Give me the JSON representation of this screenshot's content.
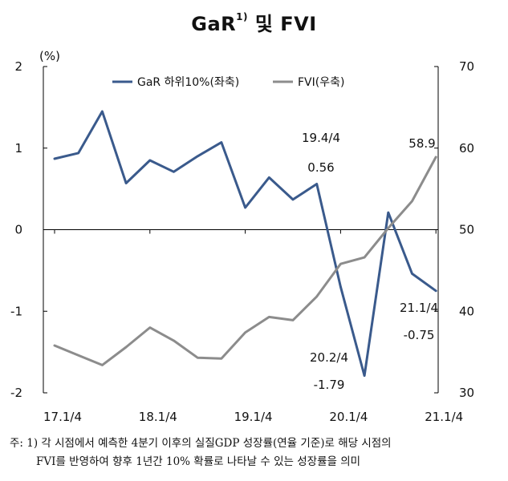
{
  "title": {
    "main": "GaR",
    "sup": "1)",
    "suffix": " 및 FVI"
  },
  "chart_data": {
    "type": "line",
    "left_axis": {
      "unit": "(%)",
      "ylim": [
        -2,
        2
      ],
      "ticks": [
        "2",
        "1",
        "0",
        "-1",
        "-2"
      ]
    },
    "right_axis": {
      "ylim": [
        30,
        70
      ],
      "ticks": [
        "70",
        "60",
        "50",
        "40",
        "30"
      ]
    },
    "x_tick_labels": [
      "17.1/4",
      "18.1/4",
      "19.1/4",
      "20.1/4",
      "21.1/4"
    ],
    "x": [
      "17.1/4",
      "17.2/4",
      "17.3/4",
      "17.4/4",
      "18.1/4",
      "18.2/4",
      "18.3/4",
      "18.4/4",
      "19.1/4",
      "19.2/4",
      "19.3/4",
      "19.4/4",
      "20.1/4",
      "20.2/4",
      "20.3/4",
      "20.4/4",
      "21.1/4"
    ],
    "series": [
      {
        "name": "GaR 하위10%(좌축)",
        "axis": "left",
        "color": "#3a5a8c",
        "values": [
          0.87,
          0.94,
          1.45,
          0.57,
          0.85,
          0.71,
          0.9,
          1.07,
          0.27,
          0.64,
          0.37,
          0.56,
          -0.7,
          -1.79,
          0.21,
          -0.54,
          -0.75
        ]
      },
      {
        "name": "FVI(우축)",
        "axis": "right",
        "color": "#8c8c8c",
        "values": [
          35.8,
          34.6,
          33.4,
          35.6,
          38.0,
          36.4,
          34.3,
          34.2,
          37.4,
          39.3,
          38.9,
          41.8,
          45.8,
          46.6,
          50.2,
          53.5,
          58.9
        ]
      }
    ],
    "annotations": [
      {
        "label": "19.4/4",
        "value": "0.56"
      },
      {
        "label": "20.2/4",
        "value": "-1.79"
      },
      {
        "label": "21.1/4",
        "value": "-0.75"
      },
      {
        "label": "",
        "value": "58.9"
      }
    ]
  },
  "note": {
    "line1": "주: 1) 각 시점에서 예측한 4분기 이후의 실질GDP 성장률(연율 기준)로 해당 시점의",
    "line2": "FVI를 반영하여 향후 1년간 10% 확률로 나타날 수 있는 성장률을 의미"
  }
}
